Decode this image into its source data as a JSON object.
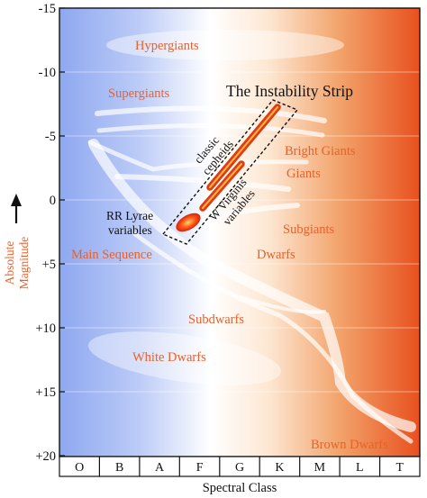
{
  "title": "The Instability Strip",
  "x_axis": {
    "label": "Spectral Class",
    "classes": [
      "O",
      "B",
      "A",
      "F",
      "G",
      "K",
      "M",
      "L",
      "T"
    ]
  },
  "y_axis": {
    "label_line1": "Absolute",
    "label_line2": "Magnitude",
    "ticks": [
      "-15",
      "-10",
      "-5",
      "0",
      "+5",
      "+10",
      "+15",
      "+20"
    ]
  },
  "regions": {
    "hypergiants": "Hypergiants",
    "supergiants": "Supergiants",
    "bright_giants": "Bright Giants",
    "giants": "Giants",
    "subgiants": "Subgiants",
    "main_sequence": "Main Sequence",
    "dwarfs": "Dwarfs",
    "subdwarfs": "Subdwarfs",
    "white_dwarfs": "White Dwarfs",
    "brown_dwarfs": "Brown Dwarfs"
  },
  "variables": {
    "classic_cepheids_1": "classic",
    "classic_cepheids_2": "cepheids",
    "w_virginis_1": "W Virginis",
    "w_virginis_2": "variables",
    "rr_lyrae_1": "RR Lyrae",
    "rr_lyrae_2": "variables"
  },
  "colors": {
    "hot_blue": "#8ea8f0",
    "cool_red": "#e8501e",
    "label_orange": "#e8612c",
    "strip_red": "#e03a10"
  }
}
